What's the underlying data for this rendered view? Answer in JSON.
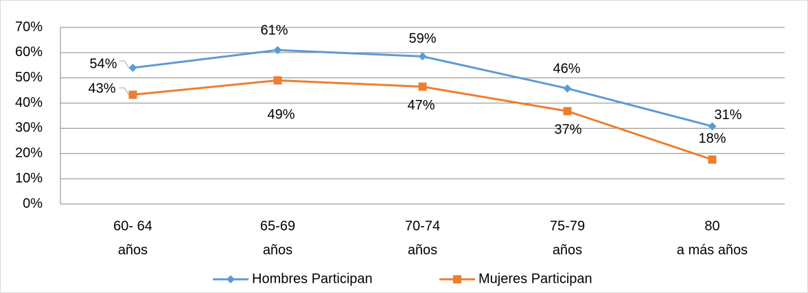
{
  "chart_data": {
    "type": "line",
    "categories": [
      [
        "60- 64",
        "años"
      ],
      [
        "65-69",
        "años"
      ],
      [
        "70-74",
        "años"
      ],
      [
        "75-79",
        "años"
      ],
      [
        "80",
        "a más años"
      ]
    ],
    "series": [
      {
        "name": "Hombres Participan",
        "color": "#5b9bd5",
        "marker": "diamond",
        "values": [
          54,
          61,
          58.5,
          45.8,
          30.8
        ],
        "value_labels": [
          "54%",
          "61%",
          "59%",
          "46%",
          "31%"
        ]
      },
      {
        "name": "Mujeres Participan",
        "color": "#ed7d31",
        "marker": "square",
        "values": [
          43.3,
          49,
          46.5,
          36.8,
          17.6
        ],
        "value_labels": [
          "43%",
          "49%",
          "47%",
          "37%",
          "18%"
        ]
      }
    ],
    "ylim": [
      0,
      70
    ],
    "yticks": [
      {
        "value": 0,
        "label": "0%"
      },
      {
        "value": 10,
        "label": "10%"
      },
      {
        "value": 20,
        "label": "20%"
      },
      {
        "value": 30,
        "label": "30%"
      },
      {
        "value": 40,
        "label": "40%"
      },
      {
        "value": 50,
        "label": "50%"
      },
      {
        "value": 60,
        "label": "60%"
      },
      {
        "value": 70,
        "label": "70%"
      }
    ],
    "grid": true,
    "legend": "bottom"
  }
}
